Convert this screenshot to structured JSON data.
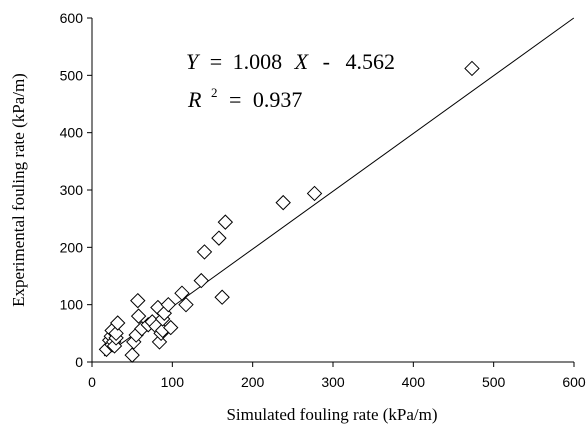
{
  "chart_data": {
    "type": "scatter",
    "xlabel": "Simulated fouling rate (kPa/m)",
    "ylabel": "Experimental fouling rate (kPa/m)",
    "xlim": [
      0,
      600
    ],
    "ylim": [
      0,
      600
    ],
    "xticks": [
      0,
      100,
      200,
      300,
      400,
      500,
      600
    ],
    "yticks": [
      0,
      100,
      200,
      300,
      400,
      500,
      600
    ],
    "grid": false,
    "legend": "none",
    "marker": "diamond",
    "fit": {
      "slope": 1.008,
      "intercept": -4.562,
      "equation": {
        "y_var": "Y",
        "eq_sign": "=",
        "slope_text": "1.008",
        "x_var": "X",
        "minus": "-",
        "intercept_text": "4.562"
      },
      "r2": {
        "r_var": "R",
        "sup": "2",
        "eq_sign": "=",
        "value": "0.937"
      }
    },
    "points": [
      {
        "x": 18,
        "y": 22
      },
      {
        "x": 22,
        "y": 38
      },
      {
        "x": 24,
        "y": 45
      },
      {
        "x": 25,
        "y": 55
      },
      {
        "x": 25,
        "y": 30
      },
      {
        "x": 27,
        "y": 35
      },
      {
        "x": 28,
        "y": 28
      },
      {
        "x": 30,
        "y": 42
      },
      {
        "x": 30,
        "y": 50
      },
      {
        "x": 32,
        "y": 68
      },
      {
        "x": 50,
        "y": 12
      },
      {
        "x": 52,
        "y": 35
      },
      {
        "x": 55,
        "y": 47
      },
      {
        "x": 57,
        "y": 107
      },
      {
        "x": 58,
        "y": 80
      },
      {
        "x": 62,
        "y": 58
      },
      {
        "x": 70,
        "y": 65
      },
      {
        "x": 75,
        "y": 70
      },
      {
        "x": 80,
        "y": 62
      },
      {
        "x": 82,
        "y": 95
      },
      {
        "x": 84,
        "y": 35
      },
      {
        "x": 86,
        "y": 50
      },
      {
        "x": 88,
        "y": 55
      },
      {
        "x": 88,
        "y": 75
      },
      {
        "x": 90,
        "y": 85
      },
      {
        "x": 95,
        "y": 100
      },
      {
        "x": 98,
        "y": 60
      },
      {
        "x": 112,
        "y": 120
      },
      {
        "x": 117,
        "y": 100
      },
      {
        "x": 136,
        "y": 142
      },
      {
        "x": 140,
        "y": 192
      },
      {
        "x": 158,
        "y": 216
      },
      {
        "x": 162,
        "y": 113
      },
      {
        "x": 166,
        "y": 244
      },
      {
        "x": 238,
        "y": 278
      },
      {
        "x": 277,
        "y": 294
      },
      {
        "x": 473,
        "y": 512
      }
    ]
  }
}
